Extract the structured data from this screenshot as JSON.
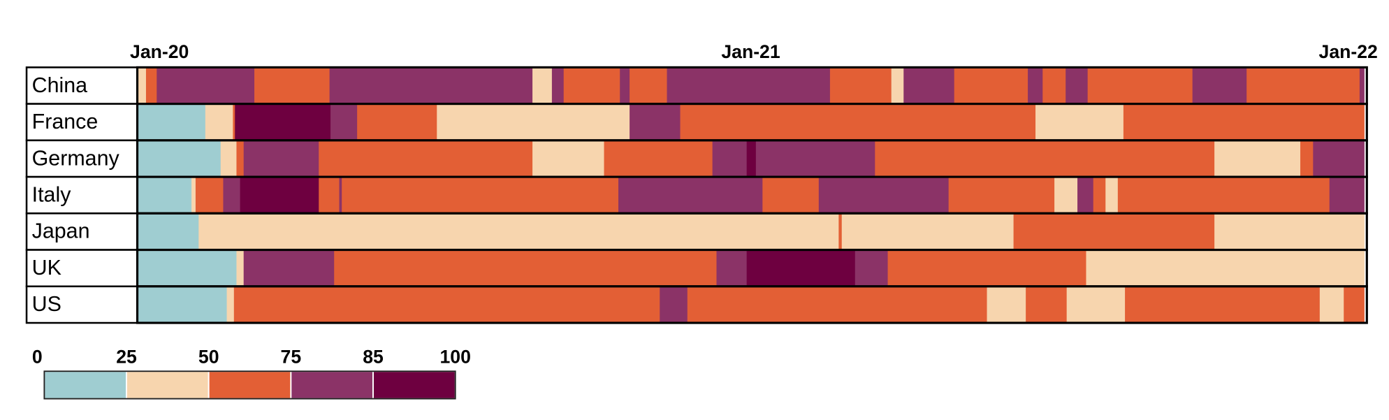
{
  "chart_data": {
    "type": "timeline-heatmap",
    "xlim": [
      0,
      24
    ],
    "xticks": [
      {
        "value": 0,
        "label": "Jan-20"
      },
      {
        "value": 12,
        "label": "Jan-21"
      },
      {
        "value": 24,
        "label": "Jan-22"
      }
    ],
    "legend_bins": [
      0,
      25,
      50,
      75,
      85,
      100
    ],
    "legend_colors": [
      "#9fcdd1",
      "#f7d5ae",
      "#e35f35",
      "#8b3367",
      "#6e0040"
    ],
    "rows": [
      {
        "name": "China",
        "edges": [
          0,
          0.17,
          0.38,
          2.29,
          3.76,
          7.73,
          8.11,
          8.34,
          9.44,
          9.63,
          10.36,
          13.55,
          14.75,
          14.99,
          15.98,
          17.42,
          17.71,
          18.16,
          18.59,
          20.64,
          21.7,
          23.91,
          24
        ],
        "levels": [
          25,
          50,
          75,
          50,
          75,
          25,
          75,
          50,
          75,
          50,
          75,
          50,
          25,
          75,
          50,
          75,
          50,
          75,
          50,
          75,
          50,
          75
        ]
      },
      {
        "name": "France",
        "edges": [
          0,
          1.33,
          1.87,
          1.91,
          3.78,
          4.3,
          5.86,
          9.63,
          10.62,
          17.57,
          19.29,
          24
        ],
        "levels": [
          0,
          25,
          50,
          85,
          75,
          50,
          25,
          75,
          50,
          25,
          50
        ]
      },
      {
        "name": "Germany",
        "edges": [
          0,
          1.63,
          1.94,
          2.08,
          3.55,
          7.73,
          9.13,
          11.25,
          11.92,
          12.1,
          14.43,
          21.07,
          22.75,
          23.0,
          24
        ],
        "levels": [
          0,
          25,
          50,
          75,
          50,
          25,
          50,
          75,
          85,
          75,
          50,
          25,
          50,
          75
        ]
      },
      {
        "name": "Italy",
        "edges": [
          0,
          1.06,
          1.14,
          1.68,
          2.01,
          3.55,
          3.95,
          4.0,
          9.41,
          12.23,
          13.33,
          15.87,
          17.94,
          18.39,
          18.7,
          18.94,
          19.18,
          23.32,
          24
        ],
        "levels": [
          0,
          25,
          50,
          75,
          85,
          50,
          75,
          50,
          75,
          50,
          75,
          50,
          25,
          75,
          50,
          25,
          50,
          75
        ]
      },
      {
        "name": "Japan",
        "edges": [
          0,
          1.2,
          13.72,
          13.78,
          17.14,
          21.07,
          24
        ],
        "levels": [
          0,
          25,
          50,
          25,
          50,
          25
        ]
      },
      {
        "name": "UK",
        "edges": [
          0,
          1.94,
          2.08,
          3.85,
          11.33,
          11.92,
          14.04,
          14.68,
          18.56,
          24
        ],
        "levels": [
          0,
          25,
          75,
          50,
          75,
          85,
          75,
          50,
          25
        ]
      },
      {
        "name": "US",
        "edges": [
          0,
          1.75,
          1.89,
          10.22,
          10.76,
          16.62,
          17.38,
          18.18,
          19.32,
          23.13,
          23.6,
          24
        ],
        "levels": [
          0,
          25,
          50,
          75,
          50,
          25,
          50,
          25,
          50,
          25,
          50
        ]
      }
    ]
  }
}
